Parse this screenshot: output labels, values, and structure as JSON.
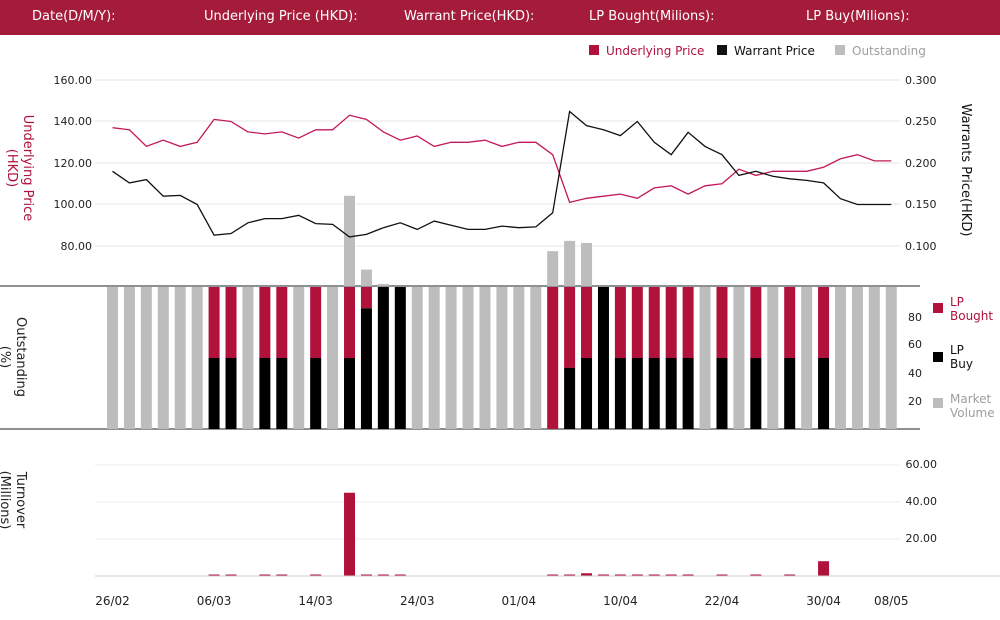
{
  "header": {
    "fields": [
      {
        "label": "Date(D/M/Y):"
      },
      {
        "label": "Underlying Price (HKD):"
      },
      {
        "label": "Warrant  Price(HKD):"
      },
      {
        "label": "LP Bought(Milions):"
      },
      {
        "label": "LP Buy(Milions):"
      }
    ]
  },
  "colors": {
    "header_bg": "#a51c3a",
    "underlying": "#c2185b",
    "warrant": "#111111",
    "outstanding": "#bdbdbd",
    "lp_bought": "#b0123c",
    "lp_buy": "#000000",
    "turnover": "#b0123c"
  },
  "chart_data": [
    {
      "type": "line",
      "legend": [
        "Underlying Price",
        "Warrant  Price",
        "Outstanding"
      ],
      "ylabel_left": "Underlying Price (HKD)",
      "ylabel_right": "Warrants  Price(HKD)",
      "yticks_left": [
        "160.00",
        "140.00",
        "120.00",
        "100.00",
        "80.00"
      ],
      "yticks_right": [
        "0.300",
        "0.250",
        "0.200",
        "0.150",
        "0.100"
      ],
      "ylim_left": [
        60,
        160
      ],
      "ylim_right": [
        0.05,
        0.3
      ],
      "grid": true,
      "underlying": [
        137,
        136,
        128,
        131,
        128,
        130,
        141,
        140,
        135,
        134,
        135,
        132,
        136,
        136,
        143,
        141,
        135,
        131,
        133,
        128,
        130,
        130,
        131,
        128,
        130,
        130,
        124,
        101,
        103,
        104,
        105,
        103,
        108,
        109,
        105,
        109,
        110,
        117,
        114,
        116,
        116,
        116,
        118,
        122,
        124,
        121,
        121
      ],
      "warrant": [
        0.19,
        0.176,
        0.18,
        0.16,
        0.161,
        0.15,
        0.113,
        0.115,
        0.128,
        0.133,
        0.133,
        0.137,
        0.127,
        0.126,
        0.111,
        0.114,
        0.122,
        0.128,
        0.12,
        0.13,
        0.125,
        0.12,
        0.12,
        0.124,
        0.122,
        0.123,
        0.14,
        0.262,
        0.245,
        0.24,
        0.233,
        0.25,
        0.225,
        0.21,
        0.237,
        0.22,
        0.21,
        0.185,
        0.19,
        0.184,
        0.181,
        0.179,
        0.176,
        0.157,
        0.15,
        0.15,
        0.15
      ],
      "outstanding_extra": [
        0,
        0,
        0,
        0,
        0,
        0,
        0,
        0,
        0,
        0,
        0,
        0,
        0,
        0,
        44,
        8,
        1,
        0,
        0,
        0,
        0,
        0,
        0,
        0,
        0,
        0,
        17,
        22,
        21,
        0,
        0,
        0,
        0,
        0,
        0,
        0,
        0,
        0,
        0,
        0,
        0,
        0,
        0,
        0,
        0,
        0,
        0
      ]
    },
    {
      "type": "bar",
      "legend": [
        "LP Bought",
        "LP Buy",
        "Market Volume"
      ],
      "ylabel": "Outstanding (%)",
      "yticks": [
        "80",
        "60",
        "40",
        "20"
      ],
      "ylim": [
        0,
        100
      ],
      "bars": [
        {
          "kind": "gray"
        },
        {
          "kind": "gray"
        },
        {
          "kind": "gray"
        },
        {
          "kind": "gray"
        },
        {
          "kind": "gray"
        },
        {
          "kind": "gray"
        },
        {
          "kind": "split",
          "buy": 50
        },
        {
          "kind": "split",
          "buy": 50
        },
        {
          "kind": "gray"
        },
        {
          "kind": "split",
          "buy": 50
        },
        {
          "kind": "split",
          "buy": 50
        },
        {
          "kind": "gray"
        },
        {
          "kind": "split",
          "buy": 50
        },
        {
          "kind": "gray"
        },
        {
          "kind": "split",
          "buy": 50
        },
        {
          "kind": "split",
          "buy": 85
        },
        {
          "kind": "black"
        },
        {
          "kind": "black"
        },
        {
          "kind": "gray"
        },
        {
          "kind": "gray"
        },
        {
          "kind": "gray"
        },
        {
          "kind": "gray"
        },
        {
          "kind": "gray"
        },
        {
          "kind": "gray"
        },
        {
          "kind": "gray"
        },
        {
          "kind": "gray"
        },
        {
          "kind": "red"
        },
        {
          "kind": "split",
          "buy": 43
        },
        {
          "kind": "split",
          "buy": 50
        },
        {
          "kind": "black"
        },
        {
          "kind": "split",
          "buy": 50
        },
        {
          "kind": "split",
          "buy": 50
        },
        {
          "kind": "split",
          "buy": 50
        },
        {
          "kind": "split",
          "buy": 50
        },
        {
          "kind": "split",
          "buy": 50
        },
        {
          "kind": "gray"
        },
        {
          "kind": "split",
          "buy": 50
        },
        {
          "kind": "gray"
        },
        {
          "kind": "split",
          "buy": 50
        },
        {
          "kind": "gray"
        },
        {
          "kind": "split",
          "buy": 50
        },
        {
          "kind": "gray"
        },
        {
          "kind": "split",
          "buy": 50
        },
        {
          "kind": "gray"
        },
        {
          "kind": "gray"
        },
        {
          "kind": "gray"
        },
        {
          "kind": "gray"
        }
      ]
    },
    {
      "type": "bar",
      "ylabel": "Turnover (Millions)",
      "yticks": [
        "60.00",
        "40.00",
        "20.00"
      ],
      "ylim": [
        0,
        60
      ],
      "values": [
        0,
        0,
        0,
        0,
        0,
        0,
        0.8,
        0.8,
        0,
        0.8,
        0.8,
        0,
        0.8,
        0,
        45,
        0.8,
        0.8,
        0.8,
        0,
        0,
        0,
        0,
        0,
        0,
        0,
        0,
        0.8,
        0.8,
        1.5,
        0.8,
        0.8,
        0.8,
        0.8,
        0.8,
        0.8,
        0,
        0.8,
        0,
        0.8,
        0,
        0.8,
        0,
        8,
        0,
        0,
        0,
        0
      ]
    }
  ],
  "x_axis": {
    "labels": [
      "26/02",
      "06/03",
      "14/03",
      "24/03",
      "01/04",
      "10/04",
      "22/04",
      "30/04",
      "08/05"
    ],
    "label_index": [
      0,
      6,
      12,
      18,
      24,
      30,
      36,
      42,
      46
    ]
  }
}
